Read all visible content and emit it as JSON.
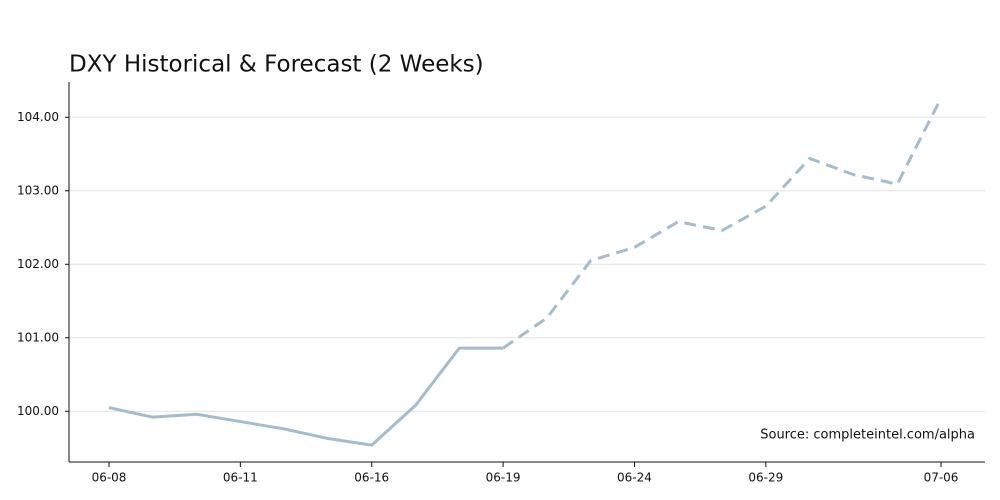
{
  "chart_data": {
    "type": "line",
    "title": "DXY Historical & Forecast (2 Weeks)",
    "annotation": "Source: completeintel.com/alpha",
    "categories": [
      "06-08",
      null,
      null,
      "06-11",
      null,
      null,
      "06-16",
      null,
      null,
      "06-19",
      null,
      null,
      "06-24",
      null,
      null,
      "06-29",
      null,
      null,
      null,
      "07-06"
    ],
    "series": [
      {
        "color": "#a7bccb",
        "dash": false,
        "values": [
          100.05,
          99.92,
          99.96,
          99.86,
          99.76,
          99.63,
          99.54,
          100.08,
          100.86,
          100.86,
          null,
          null,
          null,
          null,
          null,
          null,
          null,
          null,
          null,
          null
        ]
      },
      {
        "color": "#a7bccb",
        "dash": true,
        "values": [
          null,
          null,
          null,
          null,
          null,
          null,
          null,
          null,
          null,
          100.86,
          101.27,
          102.05,
          102.23,
          102.58,
          102.46,
          102.79,
          103.44,
          103.22,
          103.09,
          104.26
        ]
      }
    ],
    "ylim": [
      99.31,
      104.48
    ],
    "yticks": [
      {
        "value": 100,
        "label": "100.00"
      },
      {
        "value": 101,
        "label": "101.00"
      },
      {
        "value": 102,
        "label": "102.00"
      },
      {
        "value": 103,
        "label": "103.00"
      },
      {
        "value": 104,
        "label": "104.00"
      }
    ],
    "grid": true
  }
}
